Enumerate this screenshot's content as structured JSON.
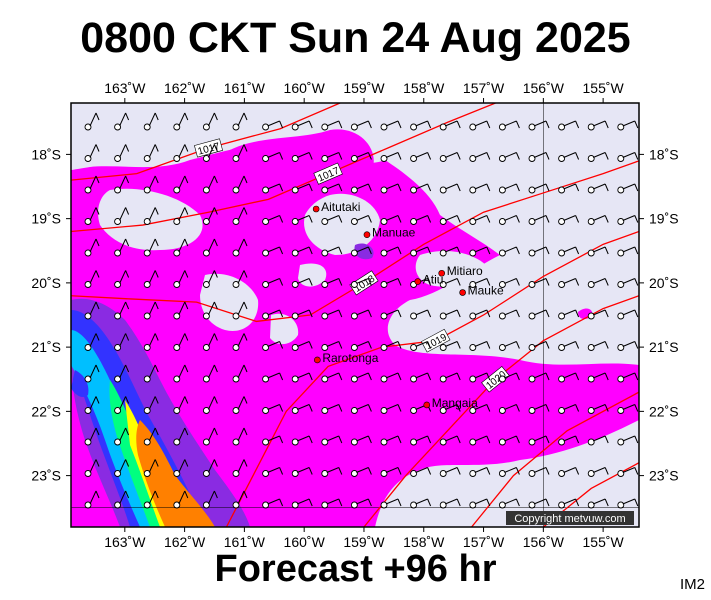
{
  "title": "0800 CKT Sun 24 Aug 2025",
  "subtitle": "Forecast +96 hr",
  "image_code": "IM2",
  "copyright": "Copyright metvuw.com",
  "map": {
    "lon_range": [
      -163.9,
      -154.4
    ],
    "lat_range": [
      -23.8,
      -17.2
    ],
    "lon_ticks": [
      {
        "value": -163,
        "label": "163˚W"
      },
      {
        "value": -162,
        "label": "162˚W"
      },
      {
        "value": -161,
        "label": "161˚W"
      },
      {
        "value": -160,
        "label": "160˚W"
      },
      {
        "value": -159,
        "label": "159˚W"
      },
      {
        "value": -158,
        "label": "158˚W"
      },
      {
        "value": -157,
        "label": "157˚W"
      },
      {
        "value": -156,
        "label": "156˚W"
      },
      {
        "value": -155,
        "label": "155˚W"
      }
    ],
    "lat_ticks": [
      {
        "value": -18,
        "label": "18˚S"
      },
      {
        "value": -19,
        "label": "19˚S"
      },
      {
        "value": -20,
        "label": "20˚S"
      },
      {
        "value": -21,
        "label": "21˚S"
      },
      {
        "value": -22,
        "label": "22˚S"
      },
      {
        "value": -23,
        "label": "23˚S"
      }
    ],
    "places": [
      {
        "name": "Aitutaki",
        "lon": -159.8,
        "lat": -18.85
      },
      {
        "name": "Manuae",
        "lon": -158.95,
        "lat": -19.25
      },
      {
        "name": "Mitiaro",
        "lon": -157.7,
        "lat": -19.85
      },
      {
        "name": "Atiu",
        "lon": -158.1,
        "lat": -19.98
      },
      {
        "name": "Mauke",
        "lon": -157.35,
        "lat": -20.15
      },
      {
        "name": "Rarotonga",
        "lon": -159.78,
        "lat": -21.2
      },
      {
        "name": "Mangaia",
        "lon": -157.95,
        "lat": -21.9
      }
    ],
    "isobars": [
      {
        "label": "1017",
        "points": [
          [
            -163.9,
            -18.4
          ],
          [
            -162.8,
            -18.3
          ],
          [
            -161.6,
            -17.9
          ],
          [
            -160.4,
            -17.6
          ],
          [
            -159.4,
            -17.2
          ]
        ]
      },
      {
        "label": "1017",
        "points": [
          [
            -163.9,
            -19.2
          ],
          [
            -162.7,
            -19.1
          ],
          [
            -161.6,
            -18.9
          ],
          [
            -160.6,
            -18.7
          ],
          [
            -159.6,
            -18.3
          ],
          [
            -158.6,
            -17.9
          ],
          [
            -157.6,
            -17.5
          ],
          [
            -156.8,
            -17.2
          ]
        ]
      },
      {
        "label": "1018",
        "points": [
          [
            -163.9,
            -20.2
          ],
          [
            -162.9,
            -20.25
          ],
          [
            -161.8,
            -20.3
          ],
          [
            -160.8,
            -20.6
          ],
          [
            -159.9,
            -20.5
          ],
          [
            -159.0,
            -20.0
          ],
          [
            -158.0,
            -19.4
          ],
          [
            -157.0,
            -18.9
          ],
          [
            -156.0,
            -18.6
          ],
          [
            -155.0,
            -18.3
          ],
          [
            -154.4,
            -18.1
          ]
        ]
      },
      {
        "label": "1019",
        "points": [
          [
            -161.3,
            -23.8
          ],
          [
            -160.8,
            -22.9
          ],
          [
            -160.3,
            -22.0
          ],
          [
            -159.6,
            -21.3
          ],
          [
            -158.7,
            -21.0
          ],
          [
            -157.8,
            -20.9
          ],
          [
            -157.0,
            -20.5
          ],
          [
            -156.0,
            -19.9
          ],
          [
            -155.0,
            -19.4
          ],
          [
            -154.4,
            -19.2
          ]
        ]
      },
      {
        "label": "1020",
        "points": [
          [
            -159.0,
            -23.8
          ],
          [
            -158.3,
            -23.0
          ],
          [
            -157.5,
            -22.2
          ],
          [
            -156.8,
            -21.5
          ],
          [
            -156.0,
            -20.9
          ],
          [
            -155.0,
            -20.4
          ],
          [
            -154.4,
            -20.2
          ]
        ]
      },
      {
        "label": "",
        "points": [
          [
            -157.2,
            -23.8
          ],
          [
            -156.5,
            -23.0
          ],
          [
            -155.6,
            -22.3
          ],
          [
            -154.4,
            -21.7
          ]
        ]
      },
      {
        "label": "",
        "points": [
          [
            -156.0,
            -23.8
          ],
          [
            -155.2,
            -23.2
          ],
          [
            -154.4,
            -22.8
          ]
        ]
      }
    ],
    "precip_levels": [
      "#e6e6f5",
      "#ff00ff",
      "#8a2be2",
      "#3333ff",
      "#00bfff",
      "#00ff80",
      "#ffff00",
      "#ff8000",
      "#ff4000"
    ]
  }
}
